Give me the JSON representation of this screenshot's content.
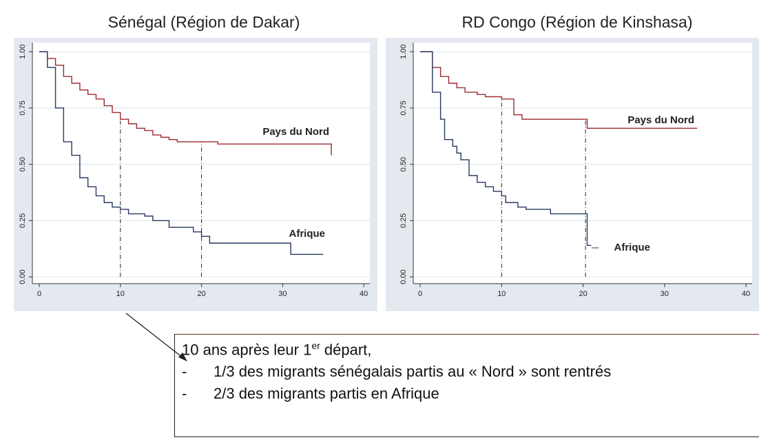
{
  "chart_data": [
    {
      "type": "step",
      "title": "Sénégal (Région de Dakar)",
      "xlim": [
        -0.85,
        40.75
      ],
      "ylim": [
        -0.03,
        1.04
      ],
      "xticks": [
        0,
        10,
        20,
        30,
        40
      ],
      "yticks": [
        {
          "value": 0,
          "label": "0.00"
        },
        {
          "value": 0.25,
          "label": "0.25"
        },
        {
          "value": 0.5,
          "label": "0.50"
        },
        {
          "value": 0.75,
          "label": "0.75"
        },
        {
          "value": 1,
          "label": "1.00"
        }
      ],
      "grid": true,
      "reference_x": [
        10,
        20
      ],
      "series": [
        {
          "name": "Pays du Nord",
          "color": "#9b2a2e",
          "x": [
            0,
            1,
            2,
            3,
            4,
            5,
            6,
            7,
            8,
            9,
            10,
            11,
            12,
            13,
            14,
            15,
            16,
            17,
            22,
            36,
            36
          ],
          "values": [
            1,
            0.97,
            0.94,
            0.89,
            0.86,
            0.83,
            0.81,
            0.79,
            0.76,
            0.73,
            0.7,
            0.68,
            0.66,
            0.65,
            0.63,
            0.62,
            0.61,
            0.6,
            0.59,
            0.59,
            0.54
          ]
        },
        {
          "name": "Afrique",
          "color": "#26385f",
          "x": [
            0,
            1,
            2,
            3,
            4,
            5,
            6,
            7,
            8,
            9,
            10,
            11,
            13,
            14,
            16,
            19,
            20,
            21,
            31,
            35
          ],
          "values": [
            1,
            0.93,
            0.75,
            0.6,
            0.54,
            0.44,
            0.4,
            0.36,
            0.33,
            0.31,
            0.3,
            0.28,
            0.27,
            0.25,
            0.22,
            0.2,
            0.18,
            0.15,
            0.1,
            0.1
          ]
        }
      ]
    },
    {
      "type": "step",
      "title": "RD Congo (Région de Kinshasa)",
      "xlim": [
        -0.85,
        40.75
      ],
      "ylim": [
        -0.03,
        1.04
      ],
      "xticks": [
        0,
        10,
        20,
        30,
        40
      ],
      "yticks": [
        {
          "value": 0,
          "label": "0.00"
        },
        {
          "value": 0.25,
          "label": "0.25"
        },
        {
          "value": 0.5,
          "label": "0.50"
        },
        {
          "value": 0.75,
          "label": "0.75"
        },
        {
          "value": 1,
          "label": "1.00"
        }
      ],
      "grid": true,
      "reference_x": [
        10,
        20.3
      ],
      "series": [
        {
          "name": "Pays du Nord",
          "color": "#9b2a2e",
          "x": [
            0,
            1.5,
            2.5,
            3.5,
            4.5,
            5.5,
            7,
            8,
            10,
            11.5,
            12.5,
            20.5,
            34
          ],
          "values": [
            1,
            0.93,
            0.89,
            0.86,
            0.84,
            0.82,
            0.81,
            0.8,
            0.79,
            0.72,
            0.7,
            0.66,
            0.66
          ]
        },
        {
          "name": "Afrique",
          "color": "#26385f",
          "x": [
            0,
            1.5,
            2.5,
            3,
            4,
            4.5,
            5,
            6,
            7,
            8,
            9,
            10,
            10.5,
            12,
            13,
            16,
            20.5,
            21
          ],
          "values": [
            1,
            0.82,
            0.7,
            0.61,
            0.58,
            0.55,
            0.52,
            0.45,
            0.42,
            0.4,
            0.38,
            0.36,
            0.33,
            0.31,
            0.3,
            0.28,
            0.14,
            0.14
          ]
        }
      ]
    }
  ],
  "note": {
    "heading": [
      "10 ans après leur 1",
      "er",
      " départ,"
    ],
    "marker": "-",
    "items": [
      "1/3 des migrants sénégalais partis au « Nord » sont rentrés",
      "2/3 des migrants partis en Afrique"
    ]
  }
}
